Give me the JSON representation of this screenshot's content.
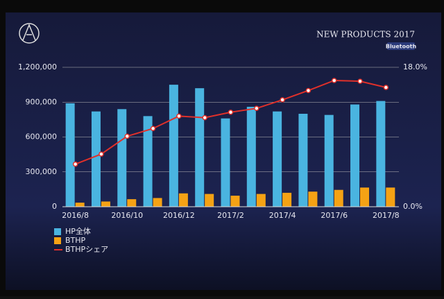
{
  "header": {
    "title": "NEW PRODUCTS 2017",
    "badge": "Bluetooth"
  },
  "chart_data": {
    "type": "bar",
    "categories": [
      "2016/8",
      null,
      "2016/10",
      null,
      "2016/12",
      null,
      "2017/2",
      null,
      "2017/4",
      null,
      "2017/6",
      null,
      "2017/8"
    ],
    "series": [
      {
        "name": "HP全体",
        "type": "bar",
        "color": "#4ab4e0",
        "values": [
          890000,
          820000,
          840000,
          780000,
          1050000,
          1020000,
          760000,
          860000,
          820000,
          800000,
          790000,
          880000,
          910000
        ]
      },
      {
        "name": "BTHP",
        "type": "bar",
        "color": "#f5a214",
        "values": [
          35000,
          45000,
          65000,
          75000,
          115000,
          110000,
          95000,
          110000,
          120000,
          130000,
          145000,
          165000,
          165000
        ]
      },
      {
        "name": "BTHPシェア",
        "type": "line",
        "axis": "y2",
        "color": "#e0302a",
        "values": [
          5.5,
          6.8,
          9.1,
          10.1,
          11.7,
          11.5,
          12.2,
          12.7,
          13.8,
          15.0,
          16.3,
          16.2,
          15.4
        ]
      }
    ],
    "ylim": [
      0,
      1200000
    ],
    "yticks": [
      0,
      {
        "value": 300000,
        "label": "300,000"
      },
      {
        "value": 600000,
        "label": "600,000"
      },
      {
        "value": 900000,
        "label": "900,000"
      },
      {
        "value": 1200000,
        "label": "1,200,000"
      }
    ],
    "y2lim": [
      0,
      18
    ],
    "y2ticks": [
      {
        "value": 0,
        "label": "0.0%"
      },
      {
        "value": 18,
        "label": "18.0%"
      }
    ],
    "grid": true
  }
}
